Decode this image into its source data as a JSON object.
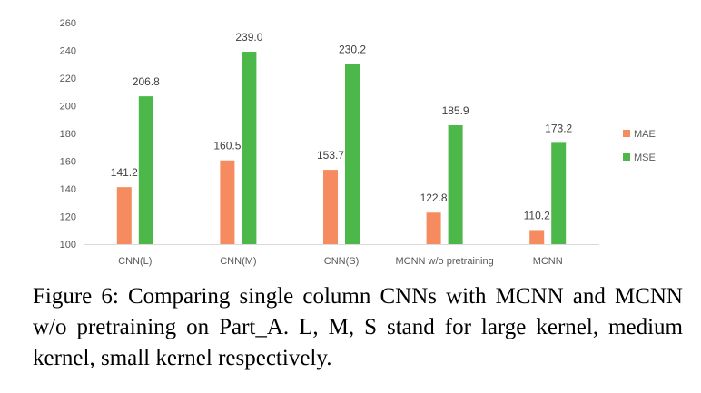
{
  "chart_data": {
    "type": "bar",
    "categories": [
      "CNN(L)",
      "CNN(M)",
      "CNN(S)",
      "MCNN w/o pretraining",
      "MCNN"
    ],
    "series": [
      {
        "name": "MAE",
        "values": [
          141.2,
          160.5,
          153.7,
          122.8,
          110.2
        ],
        "color": "#f58b5f",
        "labels": [
          "141.2",
          "160.5",
          "153.7",
          "122.8",
          "110.2"
        ]
      },
      {
        "name": "MSE",
        "values": [
          206.8,
          239.0,
          230.2,
          185.9,
          173.2
        ],
        "color": "#4db84a",
        "labels": [
          "206.8",
          "239.0",
          "230.2",
          "185.9",
          "173.2"
        ]
      }
    ],
    "ylim": [
      100,
      260
    ],
    "yticks": [
      100,
      120,
      140,
      160,
      180,
      200,
      220,
      240,
      260
    ],
    "grid": false,
    "legend_position": "right",
    "title": "",
    "xlabel": "",
    "ylabel": ""
  },
  "caption": "Figure 6: Comparing single column CNNs with MCNN and MCNN w/o pretraining on Part_A. L, M, S stand for large kernel, medium kernel, small kernel respectively."
}
